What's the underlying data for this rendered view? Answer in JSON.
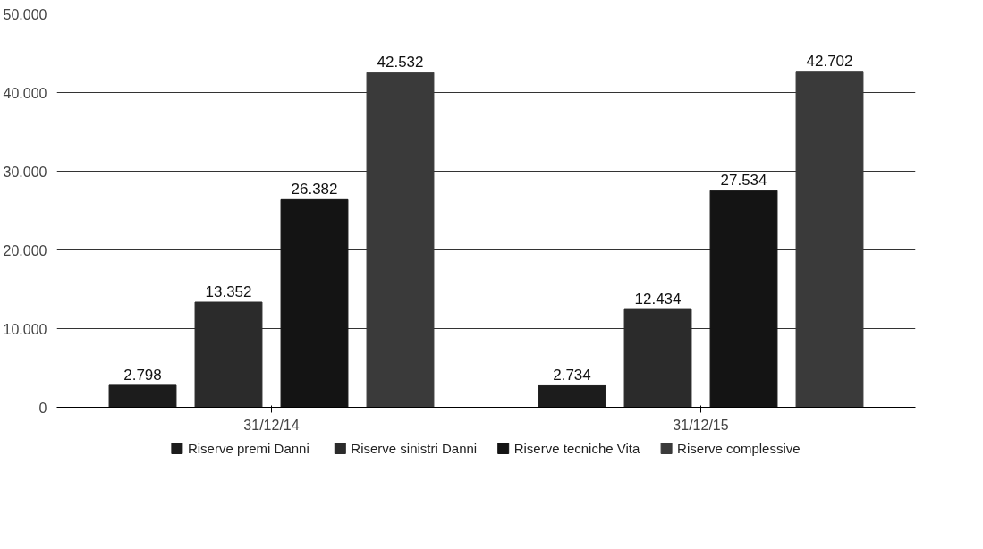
{
  "chart_data": {
    "type": "bar",
    "categories": [
      "31/12/14",
      "31/12/15"
    ],
    "series": [
      {
        "name": "Riserve premi Danni",
        "color": "#1c1c1c",
        "values": [
          2798,
          2734
        ],
        "value_labels": [
          "2.798",
          "2.734"
        ]
      },
      {
        "name": "Riserve sinistri Danni",
        "color": "#2b2b2b",
        "values": [
          13352,
          12434
        ],
        "value_labels": [
          "13.352",
          "12.434"
        ]
      },
      {
        "name": "Riserve tecniche Vita",
        "color": "#141414",
        "values": [
          26382,
          27534
        ],
        "value_labels": [
          "26.382",
          "27.534"
        ]
      },
      {
        "name": "Riserve complessive",
        "color": "#3a3a3a",
        "values": [
          42532,
          42702
        ],
        "value_labels": [
          "42.532",
          "42.702"
        ]
      }
    ],
    "ylim": [
      0,
      50000
    ],
    "yticks": [
      0,
      {
        "value": 10000,
        "label": "10.000"
      },
      {
        "value": 20000,
        "label": "20.000"
      },
      {
        "value": 30000,
        "label": "30.000"
      },
      {
        "value": 40000,
        "label": "40.000"
      },
      {
        "value": 50000,
        "label": "50.000"
      }
    ],
    "grid": "y",
    "legend": "bottom"
  }
}
